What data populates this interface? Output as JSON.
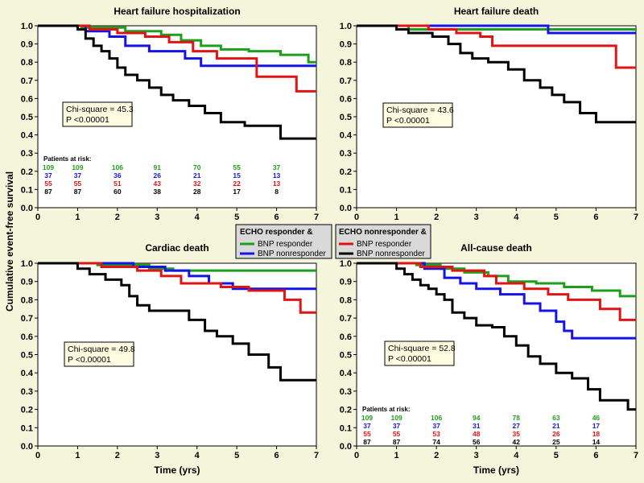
{
  "figure": {
    "ylabel": "Cumulative event-free survival",
    "xlabel": "Time (yrs)",
    "legend": {
      "groups": [
        {
          "title": "ECHO responder &",
          "entries": [
            {
              "label": "BNP responder",
              "color": "#1ca01c"
            },
            {
              "label": "BNP nonresponder",
              "color": "#1414e6"
            }
          ]
        },
        {
          "title": "ECHO nonresponder &",
          "entries": [
            {
              "label": "BNP responder",
              "color": "#e01414"
            },
            {
              "label": "BNP nonresponder",
              "color": "#000000"
            }
          ]
        }
      ]
    }
  },
  "colors": {
    "green": "#1ca01c",
    "blue": "#1414e6",
    "red": "#e01414",
    "black": "#000000"
  },
  "chart_data": [
    {
      "type": "line",
      "step": true,
      "title": "Heart failure hospitalization",
      "xlim": [
        0,
        7
      ],
      "ylim": [
        0,
        1
      ],
      "xticks": [
        "0",
        "1",
        "2",
        "3",
        "4",
        "5",
        "6",
        "7"
      ],
      "yticks": [
        "0.0",
        "0.1",
        "0.2",
        "0.3",
        "0.4",
        "0.5",
        "0.6",
        "0.7",
        "0.8",
        "0.9",
        "1.0"
      ],
      "stats": [
        "Chi-square = 45.3",
        "P <0.00001"
      ],
      "risk_table": {
        "title": "Patients at risk:",
        "rows": [
          {
            "color": "green",
            "values": [
              "109",
              "109",
              "106",
              "91",
              "70",
              "55",
              "37"
            ]
          },
          {
            "color": "blue",
            "values": [
              "37",
              "37",
              "36",
              "26",
              "21",
              "15",
              "13"
            ]
          },
          {
            "color": "red",
            "values": [
              "55",
              "55",
              "51",
              "43",
              "32",
              "22",
              "13"
            ]
          },
          {
            "color": "black",
            "values": [
              "87",
              "87",
              "60",
              "38",
              "28",
              "17",
              "8"
            ]
          }
        ]
      },
      "series": [
        {
          "color": "green",
          "x": [
            0,
            1.1,
            2.2,
            3.1,
            3.6,
            4.1,
            4.6,
            5.3,
            6.1,
            6.8,
            7
          ],
          "y": [
            1,
            0.99,
            0.97,
            0.95,
            0.92,
            0.89,
            0.87,
            0.86,
            0.84,
            0.8,
            0.8
          ]
        },
        {
          "color": "blue",
          "x": [
            0,
            1.2,
            1.8,
            2.2,
            2.8,
            3.7,
            4.1,
            7
          ],
          "y": [
            1,
            0.97,
            0.94,
            0.89,
            0.86,
            0.82,
            0.78,
            0.78
          ]
        },
        {
          "color": "red",
          "x": [
            0,
            1.3,
            2.0,
            2.7,
            3.3,
            3.9,
            4.5,
            5.5,
            6.0,
            6.5,
            7
          ],
          "y": [
            1,
            0.98,
            0.96,
            0.94,
            0.91,
            0.86,
            0.82,
            0.72,
            0.72,
            0.64,
            0.64
          ]
        },
        {
          "color": "black",
          "x": [
            0,
            1.0,
            1.2,
            1.4,
            1.6,
            1.8,
            2.0,
            2.2,
            2.5,
            2.8,
            3.1,
            3.4,
            3.8,
            4.2,
            4.6,
            5.2,
            6.1,
            7
          ],
          "y": [
            1,
            0.98,
            0.93,
            0.89,
            0.86,
            0.82,
            0.77,
            0.73,
            0.7,
            0.66,
            0.62,
            0.59,
            0.56,
            0.52,
            0.47,
            0.45,
            0.38,
            0.38
          ]
        }
      ]
    },
    {
      "type": "line",
      "step": true,
      "title": "Heart failure death",
      "xlim": [
        0,
        7
      ],
      "ylim": [
        0,
        1
      ],
      "xticks": [
        "0",
        "1",
        "2",
        "3",
        "4",
        "5",
        "6",
        "7"
      ],
      "yticks": [
        "0.0",
        "0.1",
        "0.2",
        "0.3",
        "0.4",
        "0.5",
        "0.6",
        "0.7",
        "0.8",
        "0.9",
        "1.0"
      ],
      "stats": [
        "Chi-square = 43.6",
        "P <0.00001"
      ],
      "series": [
        {
          "color": "green",
          "x": [
            0,
            1.3,
            7
          ],
          "y": [
            1,
            0.98,
            0.98
          ]
        },
        {
          "color": "blue",
          "x": [
            0,
            4.8,
            7
          ],
          "y": [
            1,
            0.96,
            0.96
          ]
        },
        {
          "color": "red",
          "x": [
            0,
            1.8,
            2.5,
            3.1,
            3.4,
            6.1,
            6.5,
            7
          ],
          "y": [
            1,
            0.98,
            0.96,
            0.94,
            0.89,
            0.89,
            0.77,
            0.77
          ]
        },
        {
          "color": "black",
          "x": [
            0,
            1.0,
            1.3,
            1.9,
            2.3,
            2.6,
            2.9,
            3.3,
            3.8,
            4.2,
            4.6,
            4.9,
            5.2,
            5.6,
            6.0,
            7
          ],
          "y": [
            1,
            0.98,
            0.96,
            0.94,
            0.9,
            0.85,
            0.82,
            0.8,
            0.76,
            0.7,
            0.66,
            0.62,
            0.58,
            0.52,
            0.47,
            0.47
          ]
        }
      ]
    },
    {
      "type": "line",
      "step": true,
      "title": "Cardiac death",
      "xlim": [
        0,
        7
      ],
      "ylim": [
        0,
        1
      ],
      "xticks": [
        "0",
        "1",
        "2",
        "3",
        "4",
        "5",
        "6",
        "7"
      ],
      "yticks": [
        "0.0",
        "0.1",
        "0.2",
        "0.3",
        "0.4",
        "0.5",
        "0.6",
        "0.7",
        "0.8",
        "0.9",
        "1.0"
      ],
      "xlabel": "Time (yrs)",
      "stats": [
        "Chi-square = 49.8",
        "P <0.00001"
      ],
      "series": [
        {
          "color": "green",
          "x": [
            0,
            1.5,
            2.8,
            3.4,
            7
          ],
          "y": [
            1,
            0.99,
            0.97,
            0.96,
            0.96
          ]
        },
        {
          "color": "blue",
          "x": [
            0,
            2.4,
            3.2,
            3.8,
            4.3,
            4.9,
            7
          ],
          "y": [
            1,
            0.98,
            0.96,
            0.93,
            0.89,
            0.86,
            0.86
          ]
        },
        {
          "color": "red",
          "x": [
            0,
            1.6,
            2.5,
            3.1,
            3.6,
            4.6,
            5.3,
            6.2,
            6.6,
            7
          ],
          "y": [
            1,
            0.98,
            0.96,
            0.93,
            0.89,
            0.87,
            0.85,
            0.8,
            0.73,
            0.73
          ]
        },
        {
          "color": "black",
          "x": [
            0,
            1.0,
            1.3,
            1.7,
            2.1,
            2.3,
            2.5,
            2.8,
            3.2,
            3.8,
            4.2,
            4.5,
            4.9,
            5.3,
            5.8,
            6.1,
            7
          ],
          "y": [
            1,
            0.97,
            0.94,
            0.91,
            0.88,
            0.82,
            0.77,
            0.74,
            0.74,
            0.69,
            0.63,
            0.6,
            0.56,
            0.5,
            0.43,
            0.36,
            0.36
          ]
        }
      ]
    },
    {
      "type": "line",
      "step": true,
      "title": "All-cause death",
      "xlim": [
        0,
        7
      ],
      "ylim": [
        0,
        1
      ],
      "xticks": [
        "0",
        "1",
        "2",
        "3",
        "4",
        "5",
        "6",
        "7"
      ],
      "yticks": [
        "0.0",
        "0.1",
        "0.2",
        "0.3",
        "0.4",
        "0.5",
        "0.6",
        "0.7",
        "0.8",
        "0.9",
        "1.0"
      ],
      "xlabel": "Time (yrs)",
      "stats": [
        "Chi-square = 52.8",
        "P <0.00001"
      ],
      "risk_table": {
        "title": "Patients at risk:",
        "rows": [
          {
            "color": "green",
            "values": [
              "109",
              "109",
              "106",
              "94",
              "78",
              "63",
              "46"
            ]
          },
          {
            "color": "blue",
            "values": [
              "37",
              "37",
              "37",
              "31",
              "27",
              "21",
              "17"
            ]
          },
          {
            "color": "red",
            "values": [
              "55",
              "55",
              "53",
              "48",
              "35",
              "26",
              "18"
            ]
          },
          {
            "color": "black",
            "values": [
              "87",
              "87",
              "74",
              "56",
              "42",
              "25",
              "14"
            ]
          }
        ]
      },
      "series": [
        {
          "color": "green",
          "x": [
            0,
            1.5,
            2.1,
            2.7,
            3.3,
            3.8,
            4.5,
            5.2,
            5.9,
            6.6,
            7
          ],
          "y": [
            1,
            0.99,
            0.97,
            0.95,
            0.93,
            0.9,
            0.89,
            0.87,
            0.85,
            0.82,
            0.82
          ]
        },
        {
          "color": "blue",
          "x": [
            0,
            1.7,
            2.2,
            2.6,
            3.0,
            3.6,
            4.2,
            4.6,
            5.0,
            5.2,
            5.4,
            7
          ],
          "y": [
            1,
            0.97,
            0.92,
            0.89,
            0.86,
            0.83,
            0.78,
            0.74,
            0.68,
            0.63,
            0.59,
            0.59
          ]
        },
        {
          "color": "red",
          "x": [
            0,
            1.6,
            2.4,
            3.2,
            3.5,
            4.2,
            4.8,
            5.3,
            6.1,
            6.6,
            7
          ],
          "y": [
            1,
            0.98,
            0.96,
            0.93,
            0.89,
            0.86,
            0.83,
            0.8,
            0.75,
            0.69,
            0.69
          ]
        },
        {
          "color": "black",
          "x": [
            0,
            1.0,
            1.2,
            1.4,
            1.6,
            1.8,
            2.0,
            2.2,
            2.4,
            2.7,
            3.0,
            3.4,
            3.7,
            4.0,
            4.3,
            4.6,
            5.0,
            5.4,
            5.8,
            6.1,
            6.8,
            7
          ],
          "y": [
            1,
            0.97,
            0.94,
            0.91,
            0.88,
            0.86,
            0.83,
            0.8,
            0.73,
            0.7,
            0.66,
            0.65,
            0.6,
            0.55,
            0.49,
            0.45,
            0.4,
            0.37,
            0.31,
            0.25,
            0.2,
            0.2
          ]
        }
      ]
    }
  ]
}
